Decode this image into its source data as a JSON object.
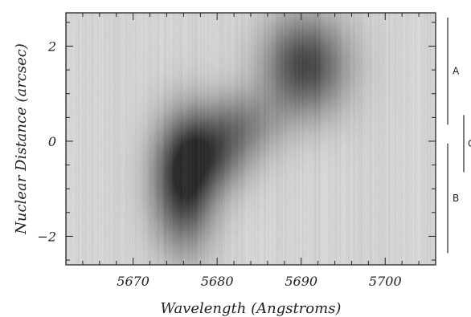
{
  "chart_data": {
    "type": "heatmap",
    "title": "",
    "xlabel": "Wavelength (Angstroms)",
    "ylabel": "Nuclear Distance (arcsec)",
    "xlim": [
      5662,
      5706
    ],
    "ylim": [
      -2.6,
      2.7
    ],
    "x_ticks": [
      5670,
      5680,
      5690,
      5700
    ],
    "x_tick_labels": [
      "5670",
      "5680",
      "5690",
      "5700"
    ],
    "y_ticks": [
      2,
      0,
      -2
    ],
    "y_tick_labels": [
      "2",
      "0",
      "−2"
    ],
    "colormap": "grayscale (dark = bright emission)",
    "emission_components": [
      {
        "x": 5676.0,
        "y": -0.9,
        "sx": 2.6,
        "sy": 0.95,
        "amp": 0.95
      },
      {
        "x": 5679.5,
        "y": -0.2,
        "sx": 3.2,
        "sy": 0.6,
        "amp": 0.6
      },
      {
        "x": 5690.5,
        "y": 1.6,
        "sx": 3.5,
        "sy": 0.75,
        "amp": 0.85
      },
      {
        "x": 5683.5,
        "y": 0.4,
        "sx": 3.0,
        "sy": 0.5,
        "amp": 0.35
      }
    ],
    "regions": [
      {
        "label": "A",
        "y_from": 2.6,
        "y_to": 0.35
      },
      {
        "label": "C",
        "y_from": 0.55,
        "y_to": -0.65
      },
      {
        "label": "B",
        "y_from": -0.05,
        "y_to": -2.35
      }
    ]
  }
}
